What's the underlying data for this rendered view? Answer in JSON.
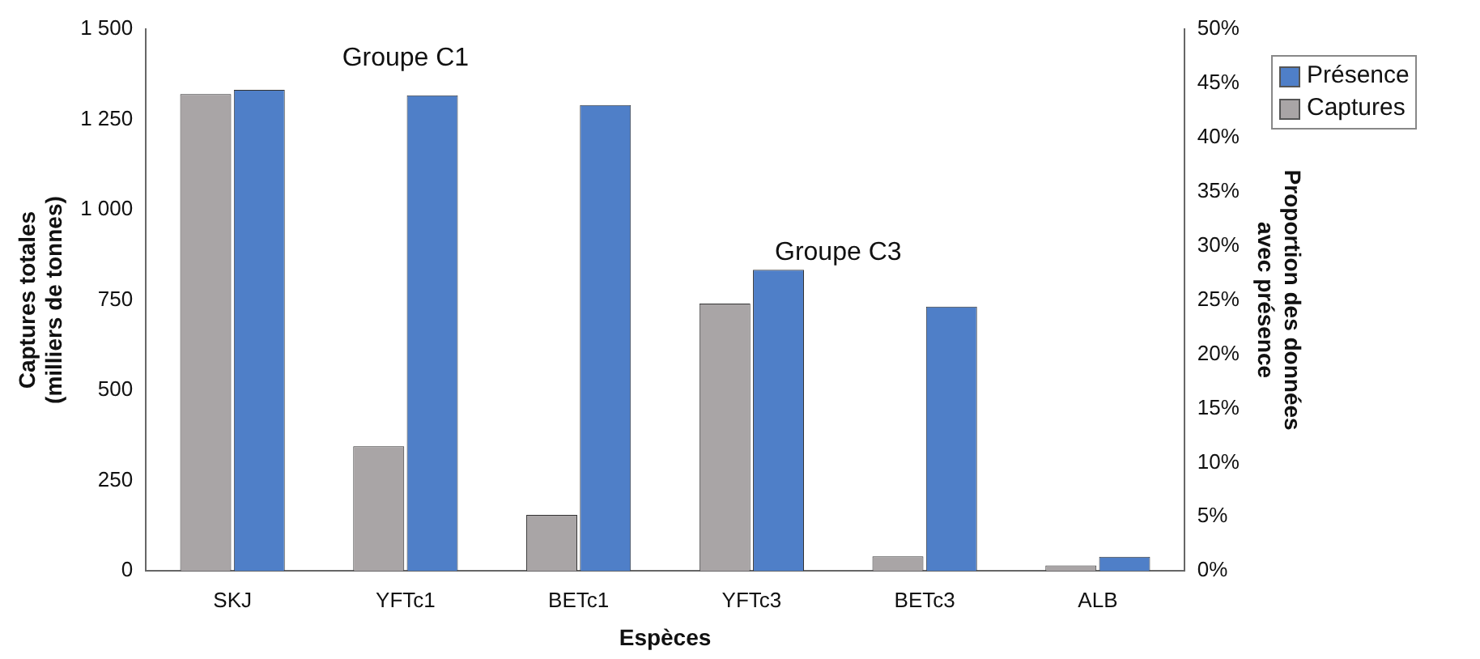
{
  "chart_data": {
    "type": "bar",
    "xlabel": "Espèces",
    "ylabel": "Captures totales\n(milliers de tonnes)",
    "y2label": "Proportion des données\navec présence",
    "categories": [
      "SKJ",
      "YFTc1",
      "BETc1",
      "YFTc3",
      "BETc3",
      "ALB"
    ],
    "series": [
      {
        "name": "Captures",
        "color": "#a9a5a6",
        "values": [
          1320,
          345,
          155,
          740,
          40,
          15
        ]
      },
      {
        "name": "Présence",
        "color": "#4f7fc8",
        "axis": "y2",
        "values": [
          44.4,
          43.9,
          43,
          27.8,
          24.4,
          1.3
        ]
      }
    ],
    "ylim": [
      0,
      1500
    ],
    "yticks": [
      0,
      250,
      500,
      750,
      {
        "value": 1000,
        "label": "1 000"
      },
      {
        "value": 1250,
        "label": "1 250"
      },
      {
        "value": 1500,
        "label": "1 500"
      }
    ],
    "y2lim": [
      0,
      50
    ],
    "y2ticks": [
      {
        "value": 0,
        "label": "0%"
      },
      {
        "value": 5,
        "label": "5%"
      },
      {
        "value": 10,
        "label": "10%"
      },
      {
        "value": 15,
        "label": "15%"
      },
      {
        "value": 20,
        "label": "20%"
      },
      {
        "value": 25,
        "label": "25%"
      },
      {
        "value": 30,
        "label": "30%"
      },
      {
        "value": 35,
        "label": "35%"
      },
      {
        "value": 40,
        "label": "40%"
      },
      {
        "value": 45,
        "label": "45%"
      },
      {
        "value": 50,
        "label": "50%"
      }
    ],
    "annotations": [
      "Groupe C1",
      "Groupe C3"
    ],
    "legend": "top right",
    "grid": false
  }
}
